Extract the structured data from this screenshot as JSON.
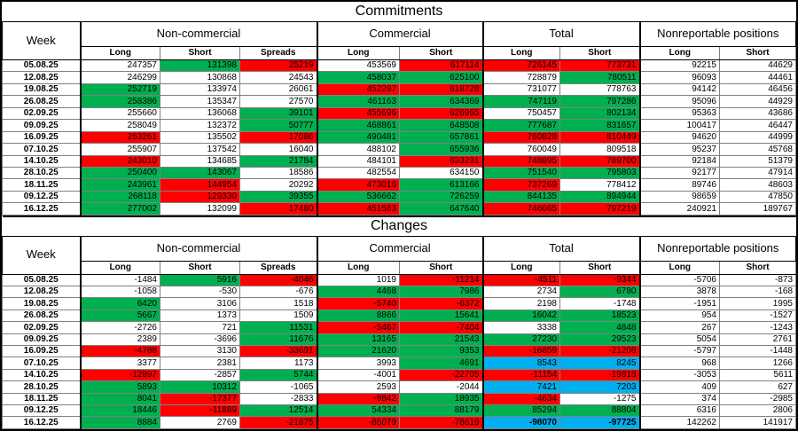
{
  "report_colors": {
    "increase": "#00B050",
    "decrease": "#FF0000",
    "highlight": "#00B0F0"
  },
  "chart_data": [
    {
      "type": "table",
      "title": "Commitments",
      "week_header": "Week",
      "groups": [
        {
          "label": "Non-commercial",
          "columns": [
            "Long",
            "Short",
            "Spreads"
          ]
        },
        {
          "label": "Commercial",
          "columns": [
            "Long",
            "Short"
          ]
        },
        {
          "label": "Total",
          "columns": [
            "Long",
            "Short"
          ]
        },
        {
          "label": "Nonreportable positions",
          "columns": [
            "Long",
            "Short"
          ]
        }
      ],
      "rows": [
        {
          "week": "05.08.25",
          "values": [
            247357,
            131398,
            25219,
            453569,
            617114,
            726145,
            773731,
            92215,
            44629
          ],
          "colors": [
            "",
            "g",
            "r",
            "",
            "r",
            "r",
            "r",
            "",
            ""
          ]
        },
        {
          "week": "12.08.25",
          "values": [
            246299,
            130868,
            24543,
            458037,
            625100,
            728879,
            780511,
            96093,
            44461
          ],
          "colors": [
            "",
            "",
            "",
            "g",
            "g",
            "",
            "g",
            "",
            ""
          ]
        },
        {
          "week": "19.08.25",
          "values": [
            252719,
            133974,
            26061,
            452297,
            618728,
            731077,
            778763,
            94142,
            46456
          ],
          "colors": [
            "g",
            "",
            "",
            "r",
            "r",
            "",
            "",
            "",
            ""
          ]
        },
        {
          "week": "26.08.25",
          "values": [
            258386,
            135347,
            27570,
            461163,
            634369,
            747119,
            797286,
            95096,
            44929
          ],
          "colors": [
            "g",
            "",
            "",
            "g",
            "g",
            "g",
            "g",
            "",
            ""
          ]
        },
        {
          "week": "02.09.25",
          "values": [
            255660,
            136068,
            39101,
            455696,
            626965,
            750457,
            802134,
            95363,
            43686
          ],
          "colors": [
            "",
            "",
            "g",
            "r",
            "r",
            "",
            "g",
            "",
            ""
          ]
        },
        {
          "week": "09.09.25",
          "values": [
            258049,
            132372,
            50777,
            468861,
            648508,
            777687,
            831657,
            100417,
            46447
          ],
          "colors": [
            "",
            "",
            "g",
            "g",
            "g",
            "g",
            "g",
            "",
            ""
          ]
        },
        {
          "week": "16.09.25",
          "values": [
            253261,
            135502,
            17086,
            490481,
            657861,
            760828,
            810449,
            94620,
            44999
          ],
          "colors": [
            "r",
            "",
            "r",
            "g",
            "g",
            "r",
            "r",
            "",
            ""
          ]
        },
        {
          "week": "07.10.25",
          "values": [
            255907,
            137542,
            16040,
            488102,
            655936,
            760049,
            809518,
            95237,
            45768
          ],
          "colors": [
            "",
            "",
            "",
            "",
            "g",
            "",
            "",
            "",
            ""
          ]
        },
        {
          "week": "14.10.25",
          "values": [
            243010,
            134685,
            21784,
            484101,
            633231,
            748895,
            789700,
            92184,
            51379
          ],
          "colors": [
            "r",
            "",
            "g",
            "",
            "r",
            "r",
            "r",
            "",
            ""
          ]
        },
        {
          "week": "28.10.25",
          "values": [
            250400,
            143067,
            18586,
            482554,
            634150,
            751540,
            795803,
            92177,
            47914
          ],
          "colors": [
            "g",
            "g",
            "",
            "",
            "",
            "g",
            "g",
            "",
            ""
          ]
        },
        {
          "week": "18.11.25",
          "values": [
            243961,
            144954,
            20292,
            473016,
            613166,
            737269,
            778412,
            89746,
            48603
          ],
          "colors": [
            "g",
            "r",
            "",
            "r",
            "g",
            "r",
            "",
            "",
            ""
          ]
        },
        {
          "week": "09.12.25",
          "values": [
            268118,
            129330,
            39355,
            536662,
            726259,
            844135,
            894944,
            98659,
            47850
          ],
          "colors": [
            "g",
            "r",
            "g",
            "g",
            "g",
            "g",
            "g",
            "",
            ""
          ]
        },
        {
          "week": "16.12.25",
          "values": [
            277002,
            132099,
            17480,
            451583,
            647640,
            746065,
            797219,
            240921,
            189767
          ],
          "colors": [
            "g",
            "",
            "r",
            "r",
            "g",
            "r",
            "r",
            "",
            ""
          ]
        }
      ]
    },
    {
      "type": "table",
      "title": "Changes",
      "week_header": "Week",
      "groups": [
        {
          "label": "Non-commercial",
          "columns": [
            "Long",
            "Short",
            "Spreads"
          ]
        },
        {
          "label": "Commercial",
          "columns": [
            "Long",
            "Short"
          ]
        },
        {
          "label": "Total",
          "columns": [
            "Long",
            "Short"
          ]
        },
        {
          "label": "Nonreportable positions",
          "columns": [
            "Long",
            "Short"
          ]
        }
      ],
      "rows": [
        {
          "week": "05.08.25",
          "values": [
            -1484,
            5916,
            -4046,
            1019,
            -11214,
            -4511,
            -9344,
            -5706,
            -873
          ],
          "colors": [
            "",
            "g",
            "r",
            "",
            "r",
            "r",
            "r",
            "",
            ""
          ]
        },
        {
          "week": "12.08.25",
          "values": [
            -1058,
            -530,
            -676,
            4468,
            7986,
            2734,
            6780,
            3878,
            -168
          ],
          "colors": [
            "",
            "",
            "",
            "g",
            "g",
            "",
            "g",
            "",
            ""
          ]
        },
        {
          "week": "19.08.25",
          "values": [
            6420,
            3106,
            1518,
            -5740,
            -6372,
            2198,
            -1748,
            -1951,
            1995
          ],
          "colors": [
            "g",
            "",
            "",
            "r",
            "r",
            "",
            "",
            "",
            ""
          ]
        },
        {
          "week": "26.08.25",
          "values": [
            5667,
            1373,
            1509,
            8866,
            15641,
            16042,
            18523,
            954,
            -1527
          ],
          "colors": [
            "g",
            "",
            "",
            "g",
            "g",
            "g",
            "g",
            "",
            ""
          ]
        },
        {
          "week": "02.09.25",
          "values": [
            -2726,
            721,
            11531,
            -5467,
            -7404,
            3338,
            4848,
            267,
            -1243
          ],
          "colors": [
            "",
            "",
            "g",
            "r",
            "r",
            "",
            "g",
            "",
            ""
          ]
        },
        {
          "week": "09.09.25",
          "values": [
            2389,
            -3696,
            11676,
            13165,
            21543,
            27230,
            29523,
            5054,
            2761
          ],
          "colors": [
            "",
            "",
            "g",
            "g",
            "g",
            "g",
            "g",
            "",
            ""
          ]
        },
        {
          "week": "16.09.25",
          "values": [
            -4788,
            3130,
            -33691,
            21620,
            9353,
            -16859,
            -21208,
            -5797,
            -1448
          ],
          "colors": [
            "r",
            "",
            "r",
            "g",
            "g",
            "r",
            "r",
            "",
            ""
          ]
        },
        {
          "week": "07.10.25",
          "values": [
            3377,
            2381,
            1173,
            3993,
            4691,
            8543,
            8245,
            968,
            1266
          ],
          "colors": [
            "",
            "",
            "",
            "",
            "g",
            "b",
            "b",
            "",
            ""
          ]
        },
        {
          "week": "14.10.25",
          "values": [
            -12897,
            -2857,
            5744,
            -4001,
            -22705,
            -11154,
            -19818,
            -3053,
            5611
          ],
          "colors": [
            "r",
            "",
            "g",
            "",
            "r",
            "r",
            "r",
            "",
            ""
          ]
        },
        {
          "week": "28.10.25",
          "values": [
            5893,
            10312,
            -1065,
            2593,
            -2044,
            7421,
            7203,
            409,
            627
          ],
          "colors": [
            "g",
            "g",
            "",
            "",
            "",
            "b",
            "b",
            "",
            ""
          ]
        },
        {
          "week": "18.11.25",
          "values": [
            8041,
            -17377,
            -2833,
            -9842,
            18935,
            -4634,
            -1275,
            374,
            -2985
          ],
          "colors": [
            "g",
            "r",
            "",
            "r",
            "g",
            "r",
            "",
            "",
            ""
          ]
        },
        {
          "week": "09.12.25",
          "values": [
            18446,
            -11889,
            12514,
            54334,
            88179,
            85294,
            88804,
            6316,
            2806
          ],
          "colors": [
            "g",
            "r",
            "g",
            "g",
            "g",
            "g",
            "g",
            "",
            ""
          ]
        },
        {
          "week": "16.12.25",
          "values": [
            8884,
            2769,
            -21875,
            -85079,
            -78619,
            -98070,
            -97725,
            142262,
            141917
          ],
          "colors": [
            "g",
            "",
            "r",
            "r",
            "r",
            "bb",
            "bb",
            "",
            ""
          ]
        }
      ]
    }
  ]
}
